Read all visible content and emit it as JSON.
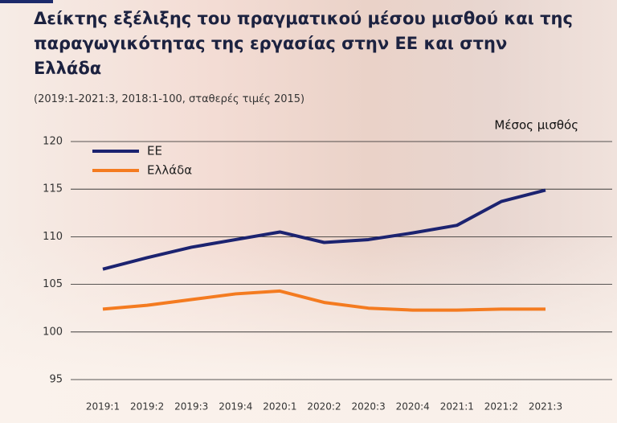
{
  "chart_data": {
    "type": "line",
    "title": "Δείκτης εξέλιξης του πραγματικού μέσου μισθού και της παραγωγικότητας της εργασίας στην ΕΕ και στην Ελλάδα",
    "subtitle": "(2019:1-2021:3, 2018:1-100, σταθερές τιμές 2015)",
    "annotation": "Μέσος μισθός",
    "categories": [
      "2019:1",
      "2019:2",
      "2019:3",
      "2019:4",
      "2020:1",
      "2020:2",
      "2020:3",
      "2020:4",
      "2021:1",
      "2021:2",
      "2021:3"
    ],
    "series": [
      {
        "name": "ΕΕ",
        "color": "#1c2370",
        "values": [
          106.6,
          107.8,
          108.9,
          109.7,
          110.5,
          109.4,
          109.7,
          110.4,
          111.2,
          113.7,
          114.9
        ]
      },
      {
        "name": "Ελλάδα",
        "color": "#f47b20",
        "values": [
          102.4,
          102.8,
          103.4,
          104.0,
          104.3,
          103.1,
          102.5,
          102.3,
          102.3,
          102.4,
          102.4
        ]
      }
    ],
    "ylim": [
      95,
      120
    ],
    "yticks": [
      95,
      100,
      105,
      110,
      115,
      120
    ],
    "grid": true,
    "legend": "upper-left"
  }
}
